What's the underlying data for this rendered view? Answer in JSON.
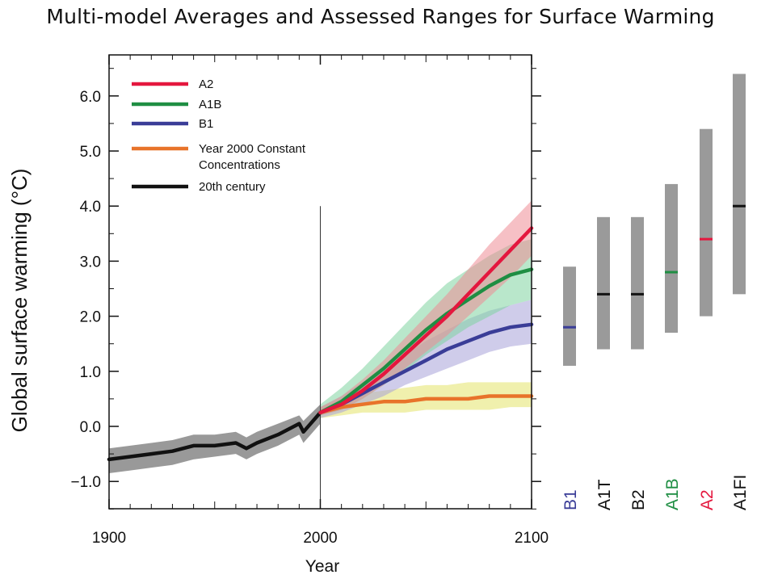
{
  "chart_data": {
    "type": "line",
    "title": "Multi-model Averages and Assessed Ranges for Surface Warming",
    "xlabel": "Year",
    "ylabel": "Global surface warming (°C)",
    "xlim": [
      1900,
      2100
    ],
    "ylim": [
      -1.5,
      6.6
    ],
    "x_ticks": [
      "1900",
      "2000",
      "2100"
    ],
    "y_ticks": [
      "6.0",
      "5.0",
      "4.0",
      "3.0",
      "2.0",
      "1.0",
      "0.0",
      "−1.0"
    ],
    "y_tick_values": [
      6,
      5,
      4,
      3,
      2,
      1,
      0,
      -1
    ],
    "legend_position": "top-left",
    "series": [
      {
        "name": "A2",
        "color": "#e4173e",
        "band_color": "#ef8d96",
        "x": [
          2000,
          2010,
          2020,
          2030,
          2040,
          2050,
          2060,
          2070,
          2080,
          2090,
          2100
        ],
        "values": [
          0.25,
          0.4,
          0.65,
          0.95,
          1.3,
          1.65,
          2.0,
          2.4,
          2.8,
          3.2,
          3.6
        ],
        "lower": [
          0.2,
          0.3,
          0.5,
          0.75,
          1.05,
          1.35,
          1.65,
          2.0,
          2.35,
          2.7,
          3.1
        ],
        "upper": [
          0.35,
          0.55,
          0.85,
          1.2,
          1.6,
          2.0,
          2.4,
          2.85,
          3.3,
          3.7,
          4.1
        ]
      },
      {
        "name": "A1B",
        "color": "#1f8e43",
        "band_color": "#7fd3a0",
        "x": [
          2000,
          2010,
          2020,
          2030,
          2040,
          2050,
          2060,
          2070,
          2080,
          2090,
          2100
        ],
        "values": [
          0.25,
          0.45,
          0.75,
          1.05,
          1.4,
          1.75,
          2.05,
          2.3,
          2.55,
          2.75,
          2.85
        ],
        "lower": [
          0.2,
          0.3,
          0.5,
          0.75,
          1.0,
          1.3,
          1.55,
          1.8,
          2.0,
          2.2,
          2.3
        ],
        "upper": [
          0.4,
          0.7,
          1.05,
          1.45,
          1.85,
          2.25,
          2.6,
          2.85,
          3.1,
          3.3,
          3.4
        ]
      },
      {
        "name": "B1",
        "color": "#3a3d97",
        "band_color": "#a8a2d8",
        "x": [
          2000,
          2010,
          2020,
          2030,
          2040,
          2050,
          2060,
          2070,
          2080,
          2090,
          2100
        ],
        "values": [
          0.25,
          0.4,
          0.6,
          0.8,
          1.0,
          1.2,
          1.4,
          1.55,
          1.7,
          1.8,
          1.85
        ],
        "lower": [
          0.15,
          0.25,
          0.4,
          0.55,
          0.75,
          0.9,
          1.05,
          1.2,
          1.35,
          1.45,
          1.5
        ],
        "upper": [
          0.35,
          0.55,
          0.8,
          1.05,
          1.3,
          1.55,
          1.75,
          1.95,
          2.1,
          2.2,
          2.3
        ]
      },
      {
        "name": "Year 2000 Constant Concentrations",
        "color": "#e8732a",
        "band_color": "#e3e36a",
        "x": [
          2000,
          2010,
          2020,
          2030,
          2040,
          2050,
          2060,
          2070,
          2080,
          2090,
          2100
        ],
        "values": [
          0.25,
          0.35,
          0.4,
          0.45,
          0.45,
          0.5,
          0.5,
          0.5,
          0.55,
          0.55,
          0.55
        ],
        "lower": [
          0.15,
          0.2,
          0.25,
          0.25,
          0.25,
          0.3,
          0.3,
          0.3,
          0.3,
          0.35,
          0.35
        ],
        "upper": [
          0.35,
          0.5,
          0.6,
          0.65,
          0.7,
          0.75,
          0.75,
          0.8,
          0.8,
          0.8,
          0.8
        ]
      },
      {
        "name": "20th century",
        "color": "#111111",
        "band_color": "#8e8e8e",
        "x": [
          1900,
          1910,
          1920,
          1930,
          1940,
          1950,
          1960,
          1965,
          1970,
          1980,
          1990,
          1992,
          2000
        ],
        "values": [
          -0.6,
          -0.55,
          -0.5,
          -0.45,
          -0.35,
          -0.35,
          -0.3,
          -0.4,
          -0.3,
          -0.15,
          0.05,
          -0.1,
          0.25
        ],
        "lower": [
          -0.85,
          -0.8,
          -0.75,
          -0.7,
          -0.6,
          -0.55,
          -0.5,
          -0.6,
          -0.5,
          -0.35,
          -0.15,
          -0.3,
          0.05
        ],
        "upper": [
          -0.4,
          -0.35,
          -0.3,
          -0.25,
          -0.15,
          -0.15,
          -0.1,
          -0.2,
          -0.1,
          0.05,
          0.2,
          0.1,
          0.4
        ]
      }
    ],
    "legend": [
      {
        "label": "A2",
        "color": "#e4173e"
      },
      {
        "label": "A1B",
        "color": "#1f8e43"
      },
      {
        "label": "B1",
        "color": "#3a3d97"
      },
      {
        "label_lines": [
          "Year 2000 Constant",
          "Concentrations"
        ],
        "color": "#e8732a"
      },
      {
        "label": "20th century",
        "color": "#111111"
      }
    ],
    "range_bars": [
      {
        "label": "B1",
        "low": 1.1,
        "best": 1.8,
        "high": 2.9,
        "label_color": "#3a3d97",
        "mark_color": "#3a3d97"
      },
      {
        "label": "A1T",
        "low": 1.4,
        "best": 2.4,
        "high": 3.8,
        "label_color": "#111111",
        "mark_color": "#111111"
      },
      {
        "label": "B2",
        "low": 1.4,
        "best": 2.4,
        "high": 3.8,
        "label_color": "#111111",
        "mark_color": "#111111"
      },
      {
        "label": "A1B",
        "low": 1.7,
        "best": 2.8,
        "high": 4.4,
        "label_color": "#1f8e43",
        "mark_color": "#1f8e43"
      },
      {
        "label": "A2",
        "low": 2.0,
        "best": 3.4,
        "high": 5.4,
        "label_color": "#e4173e",
        "mark_color": "#e4173e"
      },
      {
        "label": "A1FI",
        "low": 2.4,
        "best": 4.0,
        "high": 6.4,
        "label_color": "#111111",
        "mark_color": "#111111"
      }
    ]
  }
}
